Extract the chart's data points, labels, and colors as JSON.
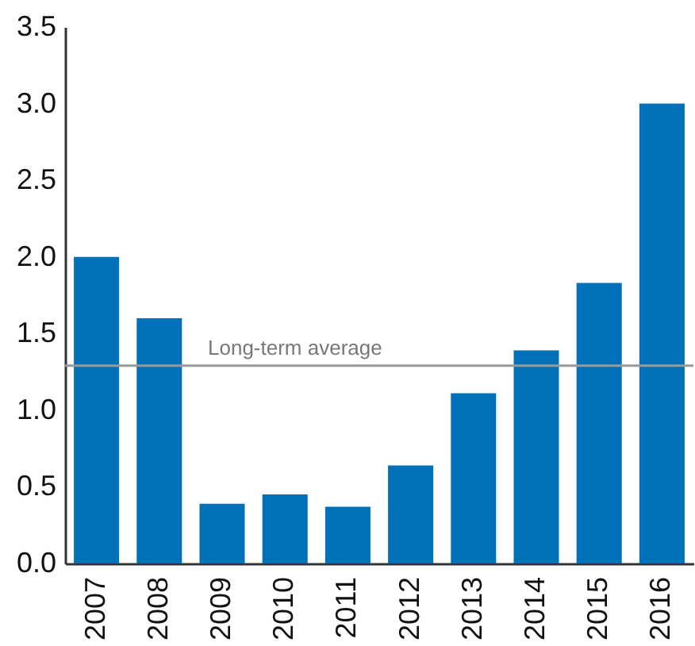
{
  "chart_data": {
    "type": "bar",
    "categories": [
      "2007",
      "2008",
      "2009",
      "2010",
      "2011",
      "2012",
      "2013",
      "2014",
      "2015",
      "2016"
    ],
    "values": [
      2.0,
      1.6,
      0.39,
      0.45,
      0.37,
      0.64,
      1.11,
      1.39,
      1.83,
      3.0
    ],
    "color": "#0070b8",
    "ylim": [
      0,
      3.5
    ],
    "yticks": [
      {
        "value": 0,
        "label": "0.0"
      },
      {
        "value": 0.5,
        "label": "0.5"
      },
      {
        "value": 1,
        "label": "1.0"
      },
      {
        "value": 1.5,
        "label": "1.5"
      },
      {
        "value": 2,
        "label": "2.0"
      },
      {
        "value": 2.5,
        "label": "2.5"
      },
      {
        "value": 3,
        "label": "3.0"
      },
      {
        "value": 3.5,
        "label": "3.5"
      }
    ],
    "ref_lines": [
      {
        "axis": "y",
        "value": 1.29,
        "label": "Long-term average",
        "color": "#999999"
      }
    ],
    "grid": false
  }
}
